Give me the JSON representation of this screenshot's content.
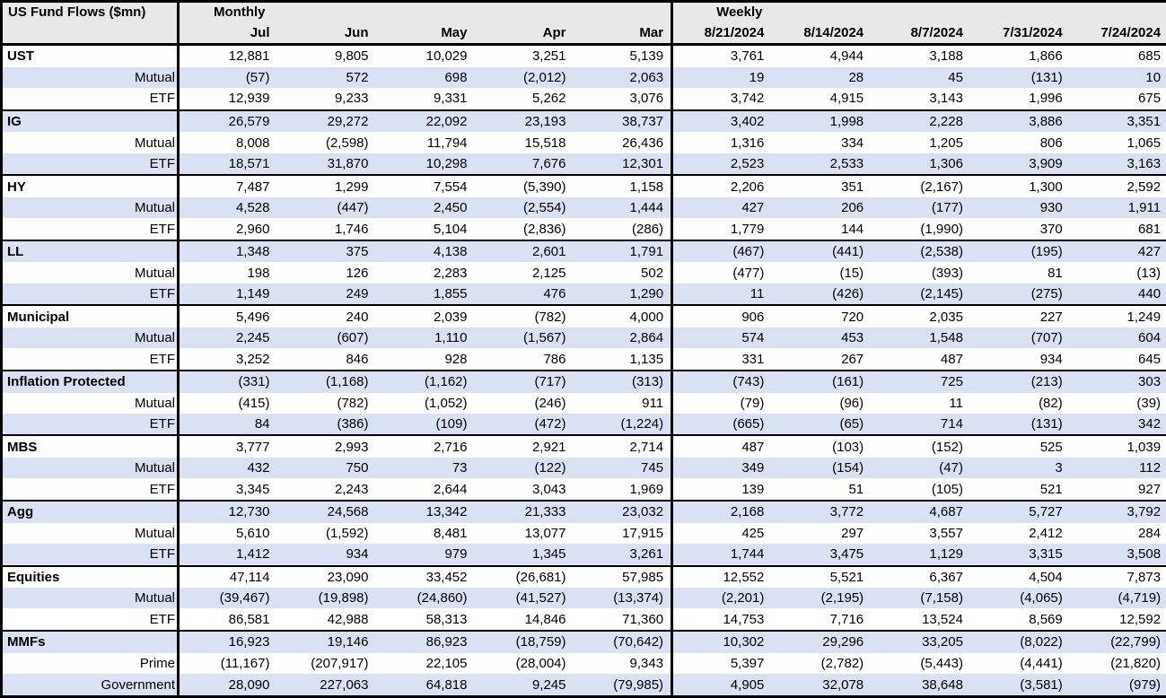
{
  "colors": {
    "row_shading": "#d9e1f2",
    "header_bg": "#e8e8e8"
  },
  "table": {
    "title": "US Fund Flows ($mn)",
    "monthly_label": "Monthly",
    "weekly_label": "Weekly",
    "monthly_columns": [
      "Jul",
      "Jun",
      "May",
      "Apr",
      "Mar"
    ],
    "weekly_columns": [
      "8/21/2024",
      "8/14/2024",
      "8/7/2024",
      "7/31/2024",
      "7/24/2024"
    ],
    "rows": [
      {
        "label": "UST",
        "type": "group",
        "values": [
          "12,881",
          "9,805",
          "10,029",
          "3,251",
          "5,139",
          "3,761",
          "4,944",
          "3,188",
          "1,866",
          "685"
        ]
      },
      {
        "label": "Mutual",
        "type": "sub",
        "values": [
          "(57)",
          "572",
          "698",
          "(2,012)",
          "2,063",
          "19",
          "28",
          "45",
          "(131)",
          "10"
        ]
      },
      {
        "label": "ETF",
        "type": "sub",
        "values": [
          "12,939",
          "9,233",
          "9,331",
          "5,262",
          "3,076",
          "3,742",
          "4,915",
          "3,143",
          "1,996",
          "675"
        ]
      },
      {
        "label": "IG",
        "type": "group",
        "values": [
          "26,579",
          "29,272",
          "22,092",
          "23,193",
          "38,737",
          "3,402",
          "1,998",
          "2,228",
          "3,886",
          "3,351"
        ]
      },
      {
        "label": "Mutual",
        "type": "sub",
        "values": [
          "8,008",
          "(2,598)",
          "11,794",
          "15,518",
          "26,436",
          "1,316",
          "334",
          "1,205",
          "806",
          "1,065"
        ]
      },
      {
        "label": "ETF",
        "type": "sub",
        "values": [
          "18,571",
          "31,870",
          "10,298",
          "7,676",
          "12,301",
          "2,523",
          "2,533",
          "1,306",
          "3,909",
          "3,163"
        ]
      },
      {
        "label": "HY",
        "type": "group",
        "values": [
          "7,487",
          "1,299",
          "7,554",
          "(5,390)",
          "1,158",
          "2,206",
          "351",
          "(2,167)",
          "1,300",
          "2,592"
        ]
      },
      {
        "label": "Mutual",
        "type": "sub",
        "values": [
          "4,528",
          "(447)",
          "2,450",
          "(2,554)",
          "1,444",
          "427",
          "206",
          "(177)",
          "930",
          "1,911"
        ]
      },
      {
        "label": "ETF",
        "type": "sub",
        "values": [
          "2,960",
          "1,746",
          "5,104",
          "(2,836)",
          "(286)",
          "1,779",
          "144",
          "(1,990)",
          "370",
          "681"
        ]
      },
      {
        "label": "LL",
        "type": "group",
        "values": [
          "1,348",
          "375",
          "4,138",
          "2,601",
          "1,791",
          "(467)",
          "(441)",
          "(2,538)",
          "(195)",
          "427"
        ]
      },
      {
        "label": "Mutual",
        "type": "sub",
        "values": [
          "198",
          "126",
          "2,283",
          "2,125",
          "502",
          "(477)",
          "(15)",
          "(393)",
          "81",
          "(13)"
        ]
      },
      {
        "label": "ETF",
        "type": "sub",
        "values": [
          "1,149",
          "249",
          "1,855",
          "476",
          "1,290",
          "11",
          "(426)",
          "(2,145)",
          "(275)",
          "440"
        ]
      },
      {
        "label": "Municipal",
        "type": "group",
        "values": [
          "5,496",
          "240",
          "2,039",
          "(782)",
          "4,000",
          "906",
          "720",
          "2,035",
          "227",
          "1,249"
        ]
      },
      {
        "label": "Mutual",
        "type": "sub",
        "values": [
          "2,245",
          "(607)",
          "1,110",
          "(1,567)",
          "2,864",
          "574",
          "453",
          "1,548",
          "(707)",
          "604"
        ]
      },
      {
        "label": "ETF",
        "type": "sub",
        "values": [
          "3,252",
          "846",
          "928",
          "786",
          "1,135",
          "331",
          "267",
          "487",
          "934",
          "645"
        ]
      },
      {
        "label": "Inflation Protected",
        "type": "group",
        "values": [
          "(331)",
          "(1,168)",
          "(1,162)",
          "(717)",
          "(313)",
          "(743)",
          "(161)",
          "725",
          "(213)",
          "303"
        ]
      },
      {
        "label": "Mutual",
        "type": "sub",
        "values": [
          "(415)",
          "(782)",
          "(1,052)",
          "(246)",
          "911",
          "(79)",
          "(96)",
          "11",
          "(82)",
          "(39)"
        ]
      },
      {
        "label": "ETF",
        "type": "sub",
        "values": [
          "84",
          "(386)",
          "(109)",
          "(472)",
          "(1,224)",
          "(665)",
          "(65)",
          "714",
          "(131)",
          "342"
        ]
      },
      {
        "label": "MBS",
        "type": "group",
        "values": [
          "3,777",
          "2,993",
          "2,716",
          "2,921",
          "2,714",
          "487",
          "(103)",
          "(152)",
          "525",
          "1,039"
        ]
      },
      {
        "label": "Mutual",
        "type": "sub",
        "values": [
          "432",
          "750",
          "73",
          "(122)",
          "745",
          "349",
          "(154)",
          "(47)",
          "3",
          "112"
        ]
      },
      {
        "label": "ETF",
        "type": "sub",
        "values": [
          "3,345",
          "2,243",
          "2,644",
          "3,043",
          "1,969",
          "139",
          "51",
          "(105)",
          "521",
          "927"
        ]
      },
      {
        "label": "Agg",
        "type": "group",
        "values": [
          "12,730",
          "24,568",
          "13,342",
          "21,333",
          "23,032",
          "2,168",
          "3,772",
          "4,687",
          "5,727",
          "3,792"
        ]
      },
      {
        "label": "Mutual",
        "type": "sub",
        "values": [
          "5,610",
          "(1,592)",
          "8,481",
          "13,077",
          "17,915",
          "425",
          "297",
          "3,557",
          "2,412",
          "284"
        ]
      },
      {
        "label": "ETF",
        "type": "sub",
        "values": [
          "1,412",
          "934",
          "979",
          "1,345",
          "3,261",
          "1,744",
          "3,475",
          "1,129",
          "3,315",
          "3,508"
        ]
      },
      {
        "label": "Equities",
        "type": "group",
        "values": [
          "47,114",
          "23,090",
          "33,452",
          "(26,681)",
          "57,985",
          "12,552",
          "5,521",
          "6,367",
          "4,504",
          "7,873"
        ]
      },
      {
        "label": "Mutual",
        "type": "sub",
        "values": [
          "(39,467)",
          "(19,898)",
          "(24,860)",
          "(41,527)",
          "(13,374)",
          "(2,201)",
          "(2,195)",
          "(7,158)",
          "(4,065)",
          "(4,719)"
        ]
      },
      {
        "label": "ETF",
        "type": "sub",
        "values": [
          "86,581",
          "42,988",
          "58,313",
          "14,846",
          "71,360",
          "14,753",
          "7,716",
          "13,524",
          "8,569",
          "12,592"
        ]
      },
      {
        "label": "MMFs",
        "type": "group",
        "values": [
          "16,923",
          "19,146",
          "86,923",
          "(18,759)",
          "(70,642)",
          "10,302",
          "29,296",
          "33,205",
          "(8,022)",
          "(22,799)"
        ]
      },
      {
        "label": "Prime",
        "type": "sub",
        "values": [
          "(11,167)",
          "(207,917)",
          "22,105",
          "(28,004)",
          "9,343",
          "5,397",
          "(2,782)",
          "(5,443)",
          "(4,441)",
          "(21,820)"
        ]
      },
      {
        "label": "Government",
        "type": "sub",
        "values": [
          "28,090",
          "227,063",
          "64,818",
          "9,245",
          "(79,985)",
          "4,905",
          "32,078",
          "38,648",
          "(3,581)",
          "(979)"
        ]
      }
    ]
  }
}
